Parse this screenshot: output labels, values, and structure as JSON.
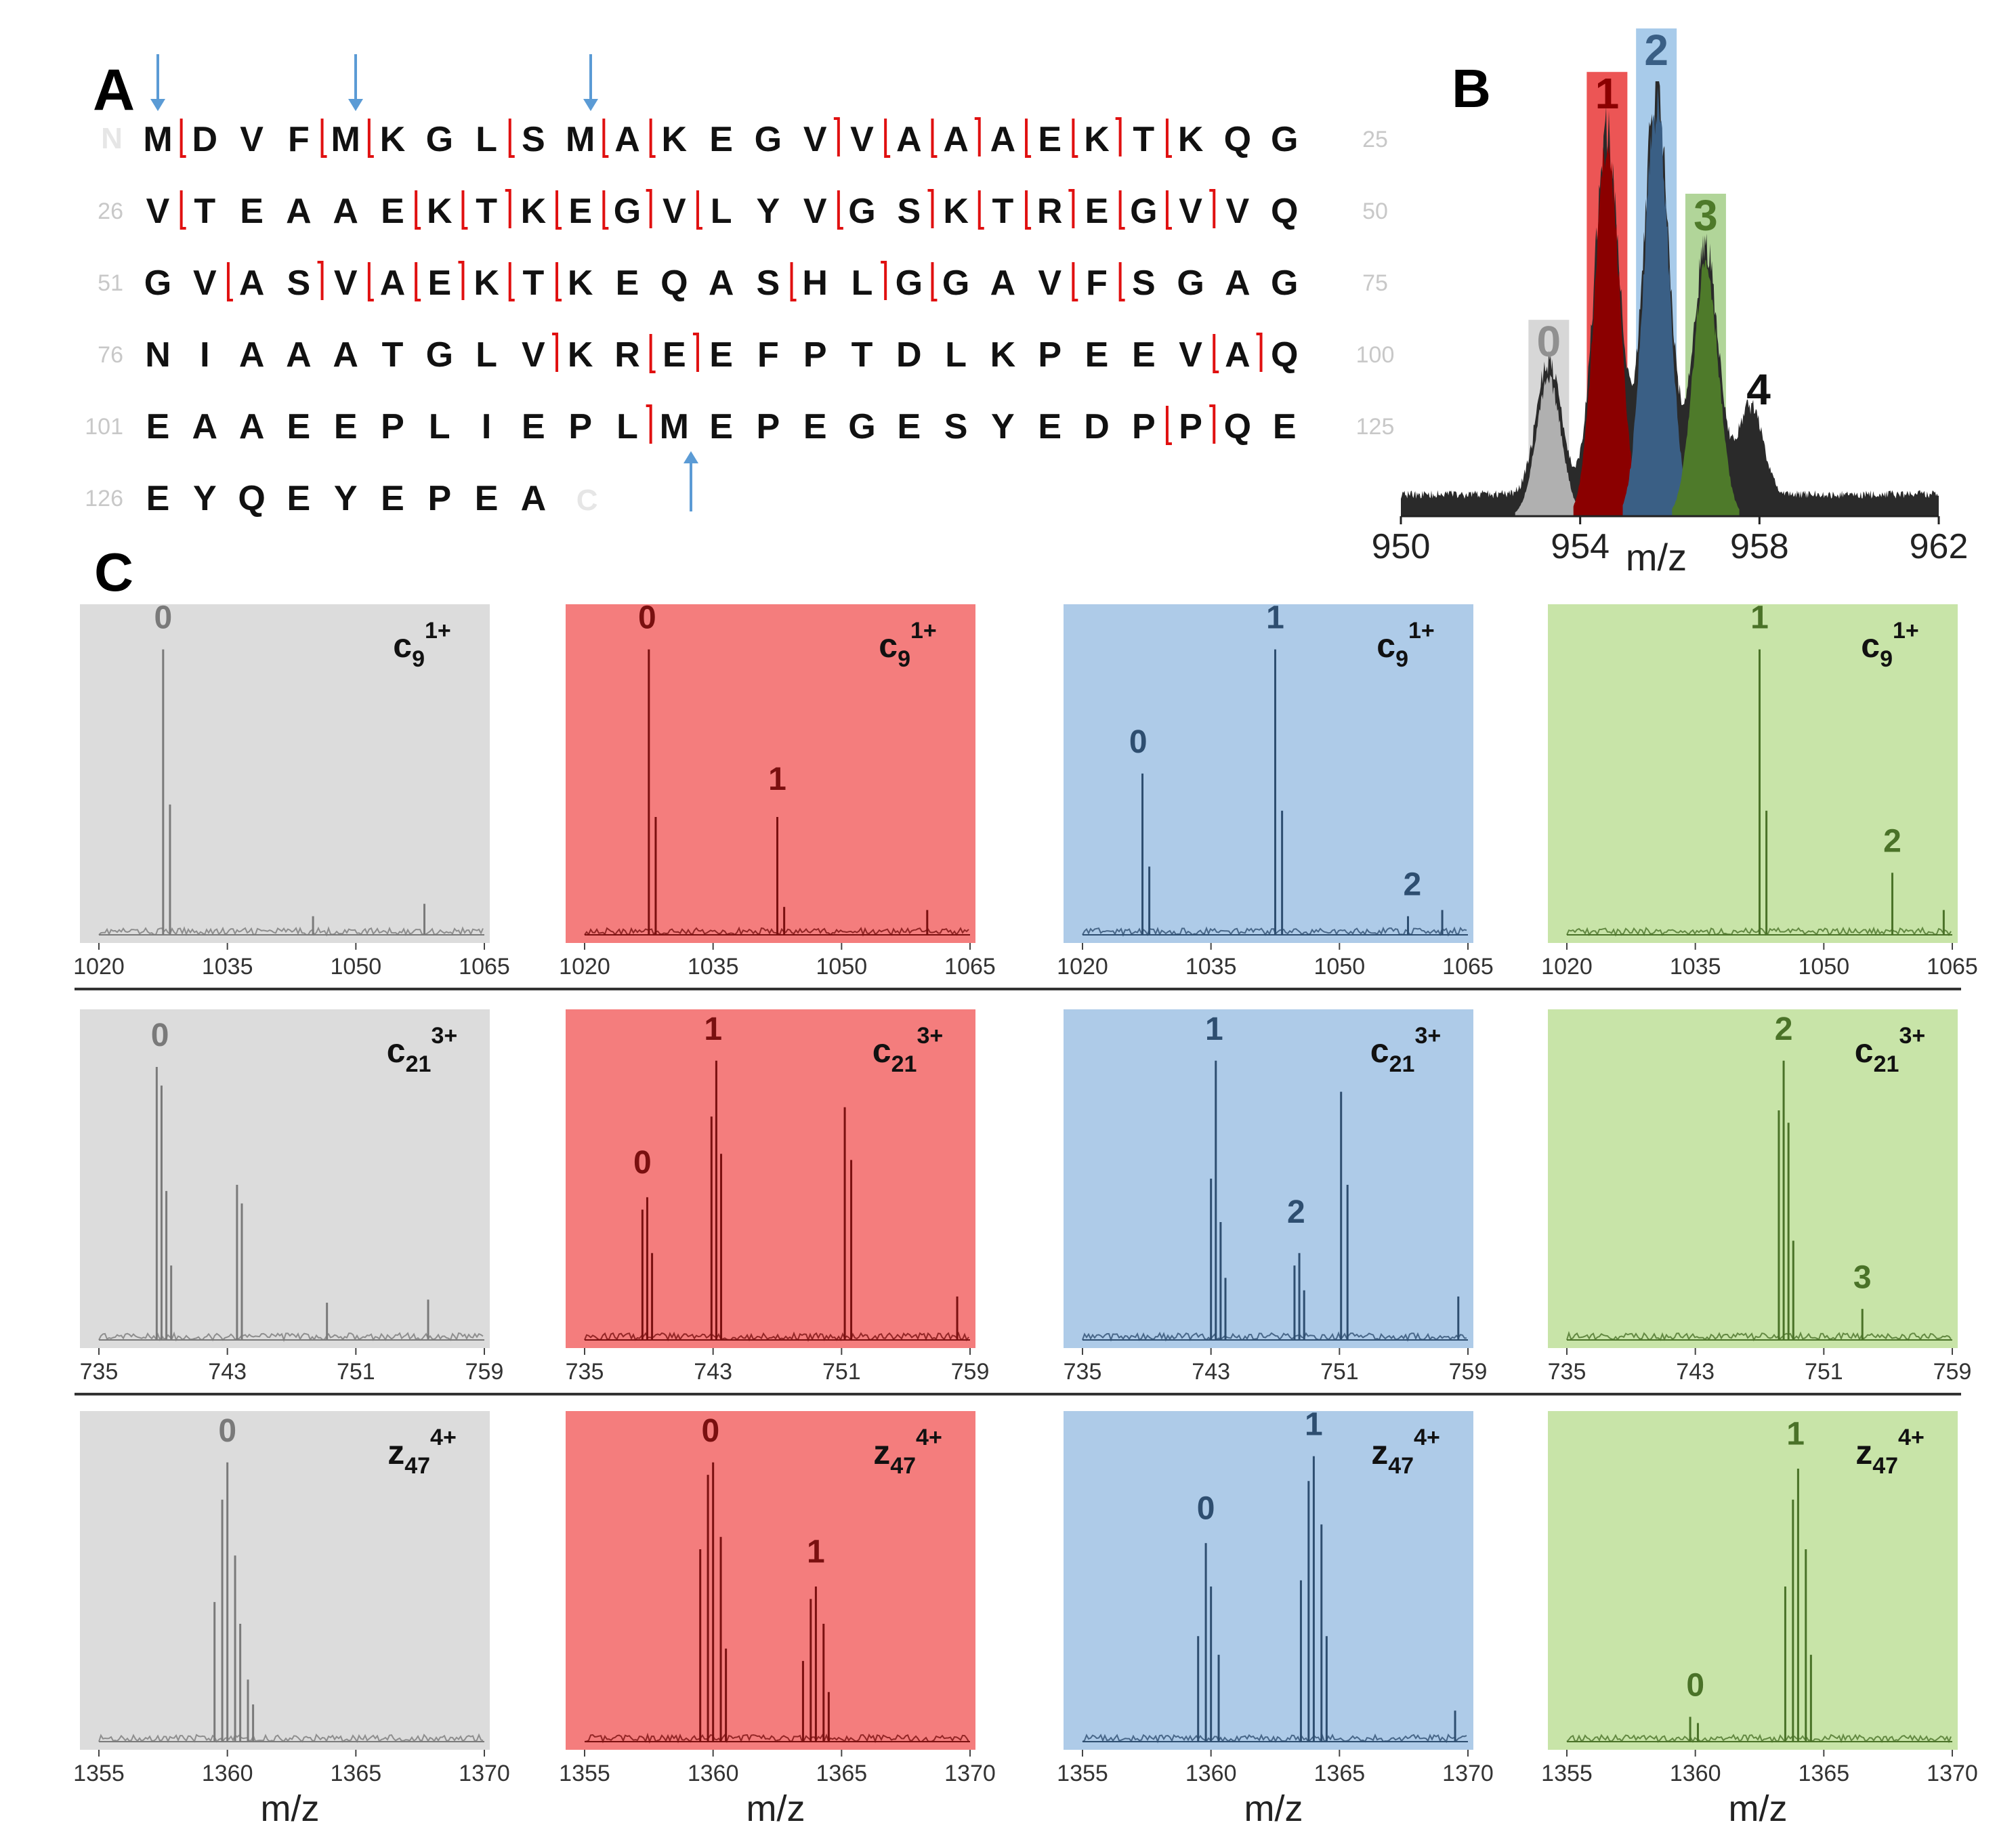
{
  "chart_data": {
    "panelA": {
      "letter": "A",
      "n_term": "N",
      "c_term": "C",
      "rows": [
        {
          "start": "",
          "end": "25",
          "seq": "MDVFMKGLSMAKEGVVAAAEKTKQG"
        },
        {
          "start": "26",
          "end": "50",
          "seq": "VTEAAEKTKEGVLYVGSKTREGVVQ"
        },
        {
          "start": "51",
          "end": "75",
          "seq": "GVASVAEKTKEQASHLGGAVFSGAG"
        },
        {
          "start": "76",
          "end": "100",
          "seq": "NIAAATGLVKREEFPTDLKPEEVAQ"
        },
        {
          "start": "101",
          "end": "125",
          "seq": "EAAEEPLIEPLMEPEGESYEDPPQE"
        },
        {
          "start": "126",
          "end": "",
          "seq": "EYQEYEPEA"
        }
      ]
    },
    "panelB": {
      "letter": "B",
      "type": "area",
      "xlabel": "m/z",
      "xlim": [
        950,
        962
      ],
      "xticks": [
        950,
        954,
        958,
        962
      ],
      "peaks": [
        {
          "label": "0",
          "x": 953.3,
          "y": 0.33,
          "color": "#b0b0b0",
          "box": "#d3d3d3",
          "labelColor": "#909090"
        },
        {
          "label": "1",
          "x": 954.6,
          "y": 0.9,
          "color": "#8b0000",
          "box": "#ea4343",
          "labelColor": "#8b0000"
        },
        {
          "label": "2",
          "x": 955.7,
          "y": 1.0,
          "color": "#3a5f85",
          "box": "#9fc5e8",
          "labelColor": "#3a5f85"
        },
        {
          "label": "3",
          "x": 956.8,
          "y": 0.62,
          "color": "#4e7a2a",
          "box": "#a9d08e",
          "labelColor": "#4e7a2a"
        },
        {
          "label": "4",
          "x": 957.8,
          "y": 0.22,
          "color": "#222222",
          "box": "none",
          "labelColor": "#111111"
        }
      ]
    },
    "panelC": {
      "letter": "C",
      "xlabel": "m/z",
      "columns": [
        {
          "bg": "#dcdcdc",
          "ink": "#7a7a7a"
        },
        {
          "bg": "#f47d7d",
          "ink": "#7a1010"
        },
        {
          "bg": "#aecbe8",
          "ink": "#2e4e70"
        },
        {
          "bg": "#c8e4a8",
          "ink": "#4a7228"
        }
      ],
      "rows": [
        {
          "ion": "c",
          "sub": "9",
          "sup": "1+",
          "xlim": [
            1020,
            1065
          ],
          "xticks": [
            "1020",
            "1035",
            "1050",
            "1065"
          ],
          "panels": [
            {
              "peaks": [
                {
                  "x": 1027.5,
                  "y": 0.92
                },
                {
                  "x": 1028.3,
                  "y": 0.42
                },
                {
                  "x": 1045,
                  "y": 0.06
                },
                {
                  "x": 1058,
                  "y": 0.1
                }
              ],
              "labels": [
                {
                  "t": "0",
                  "x": 1027.5,
                  "y": 0.97
                }
              ]
            },
            {
              "peaks": [
                {
                  "x": 1027.5,
                  "y": 0.92
                },
                {
                  "x": 1028.3,
                  "y": 0.38
                },
                {
                  "x": 1042.5,
                  "y": 0.38
                },
                {
                  "x": 1043.3,
                  "y": 0.09
                },
                {
                  "x": 1060,
                  "y": 0.08
                }
              ],
              "labels": [
                {
                  "t": "0",
                  "x": 1027.3,
                  "y": 0.97
                },
                {
                  "t": "1",
                  "x": 1042.5,
                  "y": 0.45
                }
              ]
            },
            {
              "peaks": [
                {
                  "x": 1027.0,
                  "y": 0.52
                },
                {
                  "x": 1027.8,
                  "y": 0.22
                },
                {
                  "x": 1042.5,
                  "y": 0.92
                },
                {
                  "x": 1043.3,
                  "y": 0.4
                },
                {
                  "x": 1058,
                  "y": 0.06
                },
                {
                  "x": 1062,
                  "y": 0.08
                }
              ],
              "labels": [
                {
                  "t": "0",
                  "x": 1026.5,
                  "y": 0.57
                },
                {
                  "t": "1",
                  "x": 1042.5,
                  "y": 0.97
                },
                {
                  "t": "2",
                  "x": 1058.5,
                  "y": 0.11
                }
              ]
            },
            {
              "peaks": [
                {
                  "x": 1042.5,
                  "y": 0.92
                },
                {
                  "x": 1043.3,
                  "y": 0.4
                },
                {
                  "x": 1058,
                  "y": 0.2
                },
                {
                  "x": 1064,
                  "y": 0.08
                }
              ],
              "labels": [
                {
                  "t": "1",
                  "x": 1042.5,
                  "y": 0.97
                },
                {
                  "t": "2",
                  "x": 1058,
                  "y": 0.25
                }
              ]
            }
          ]
        },
        {
          "ion": "c",
          "sub": "21",
          "sup": "3+",
          "xlim": [
            735,
            759
          ],
          "xticks": [
            "735",
            "743",
            "751",
            "759"
          ],
          "panels": [
            {
              "peaks": [
                {
                  "x": 738.6,
                  "y": 0.88
                },
                {
                  "x": 738.9,
                  "y": 0.82
                },
                {
                  "x": 739.2,
                  "y": 0.48
                },
                {
                  "x": 739.5,
                  "y": 0.24
                },
                {
                  "x": 743.6,
                  "y": 0.5
                },
                {
                  "x": 743.9,
                  "y": 0.44
                },
                {
                  "x": 749.2,
                  "y": 0.12
                },
                {
                  "x": 755.5,
                  "y": 0.13
                }
              ],
              "labels": [
                {
                  "t": "0",
                  "x": 738.8,
                  "y": 0.93
                }
              ]
            },
            {
              "peaks": [
                {
                  "x": 738.6,
                  "y": 0.42
                },
                {
                  "x": 738.9,
                  "y": 0.46
                },
                {
                  "x": 739.2,
                  "y": 0.28
                },
                {
                  "x": 742.9,
                  "y": 0.72
                },
                {
                  "x": 743.2,
                  "y": 0.9
                },
                {
                  "x": 743.5,
                  "y": 0.6
                },
                {
                  "x": 751.2,
                  "y": 0.75
                },
                {
                  "x": 751.6,
                  "y": 0.58
                },
                {
                  "x": 758.2,
                  "y": 0.14
                }
              ],
              "labels": [
                {
                  "t": "0",
                  "x": 738.6,
                  "y": 0.52
                },
                {
                  "t": "1",
                  "x": 743.0,
                  "y": 0.95
                }
              ]
            },
            {
              "peaks": [
                {
                  "x": 743.0,
                  "y": 0.52
                },
                {
                  "x": 743.3,
                  "y": 0.9
                },
                {
                  "x": 743.6,
                  "y": 0.38
                },
                {
                  "x": 743.9,
                  "y": 0.2
                },
                {
                  "x": 748.2,
                  "y": 0.24
                },
                {
                  "x": 748.5,
                  "y": 0.28
                },
                {
                  "x": 748.8,
                  "y": 0.16
                },
                {
                  "x": 751.1,
                  "y": 0.8
                },
                {
                  "x": 751.5,
                  "y": 0.5
                },
                {
                  "x": 758.4,
                  "y": 0.14
                }
              ],
              "labels": [
                {
                  "t": "1",
                  "x": 743.2,
                  "y": 0.95
                },
                {
                  "t": "2",
                  "x": 748.3,
                  "y": 0.36
                }
              ]
            },
            {
              "peaks": [
                {
                  "x": 748.2,
                  "y": 0.74
                },
                {
                  "x": 748.5,
                  "y": 0.9
                },
                {
                  "x": 748.8,
                  "y": 0.7
                },
                {
                  "x": 749.1,
                  "y": 0.32
                },
                {
                  "x": 753.4,
                  "y": 0.1
                }
              ],
              "labels": [
                {
                  "t": "2",
                  "x": 748.5,
                  "y": 0.95
                },
                {
                  "t": "3",
                  "x": 753.4,
                  "y": 0.15
                }
              ]
            }
          ]
        },
        {
          "ion": "z",
          "sub": "47",
          "sup": "4+",
          "xlim": [
            1355,
            1370
          ],
          "xticks": [
            "1355",
            "1360",
            "1365",
            "1370"
          ],
          "panels": [
            {
              "peaks": [
                {
                  "x": 1359.5,
                  "y": 0.45
                },
                {
                  "x": 1359.8,
                  "y": 0.78
                },
                {
                  "x": 1360.0,
                  "y": 0.9
                },
                {
                  "x": 1360.3,
                  "y": 0.6
                },
                {
                  "x": 1360.5,
                  "y": 0.38
                },
                {
                  "x": 1360.8,
                  "y": 0.2
                },
                {
                  "x": 1361.0,
                  "y": 0.12
                }
              ],
              "labels": [
                {
                  "t": "0",
                  "x": 1360.0,
                  "y": 0.95
                }
              ]
            },
            {
              "peaks": [
                {
                  "x": 1359.5,
                  "y": 0.62
                },
                {
                  "x": 1359.8,
                  "y": 0.86
                },
                {
                  "x": 1360.0,
                  "y": 0.9
                },
                {
                  "x": 1360.3,
                  "y": 0.66
                },
                {
                  "x": 1360.5,
                  "y": 0.3
                },
                {
                  "x": 1363.5,
                  "y": 0.26
                },
                {
                  "x": 1363.8,
                  "y": 0.46
                },
                {
                  "x": 1364.0,
                  "y": 0.5
                },
                {
                  "x": 1364.3,
                  "y": 0.38
                },
                {
                  "x": 1364.5,
                  "y": 0.16
                }
              ],
              "labels": [
                {
                  "t": "0",
                  "x": 1359.9,
                  "y": 0.95
                },
                {
                  "t": "1",
                  "x": 1364.0,
                  "y": 0.56
                }
              ]
            },
            {
              "peaks": [
                {
                  "x": 1359.5,
                  "y": 0.34
                },
                {
                  "x": 1359.8,
                  "y": 0.64
                },
                {
                  "x": 1360.0,
                  "y": 0.5
                },
                {
                  "x": 1360.3,
                  "y": 0.28
                },
                {
                  "x": 1363.5,
                  "y": 0.52
                },
                {
                  "x": 1363.8,
                  "y": 0.84
                },
                {
                  "x": 1364.0,
                  "y": 0.92
                },
                {
                  "x": 1364.3,
                  "y": 0.7
                },
                {
                  "x": 1364.5,
                  "y": 0.34
                },
                {
                  "x": 1369.5,
                  "y": 0.1
                }
              ],
              "labels": [
                {
                  "t": "0",
                  "x": 1359.8,
                  "y": 0.7
                },
                {
                  "t": "1",
                  "x": 1364.0,
                  "y": 0.97
                }
              ]
            },
            {
              "peaks": [
                {
                  "x": 1359.8,
                  "y": 0.08
                },
                {
                  "x": 1360.1,
                  "y": 0.06
                },
                {
                  "x": 1363.5,
                  "y": 0.5
                },
                {
                  "x": 1363.8,
                  "y": 0.78
                },
                {
                  "x": 1364.0,
                  "y": 0.88
                },
                {
                  "x": 1364.3,
                  "y": 0.62
                },
                {
                  "x": 1364.5,
                  "y": 0.28
                }
              ],
              "labels": [
                {
                  "t": "0",
                  "x": 1360.0,
                  "y": 0.13
                },
                {
                  "t": "1",
                  "x": 1363.9,
                  "y": 0.94
                }
              ]
            }
          ]
        }
      ]
    }
  }
}
